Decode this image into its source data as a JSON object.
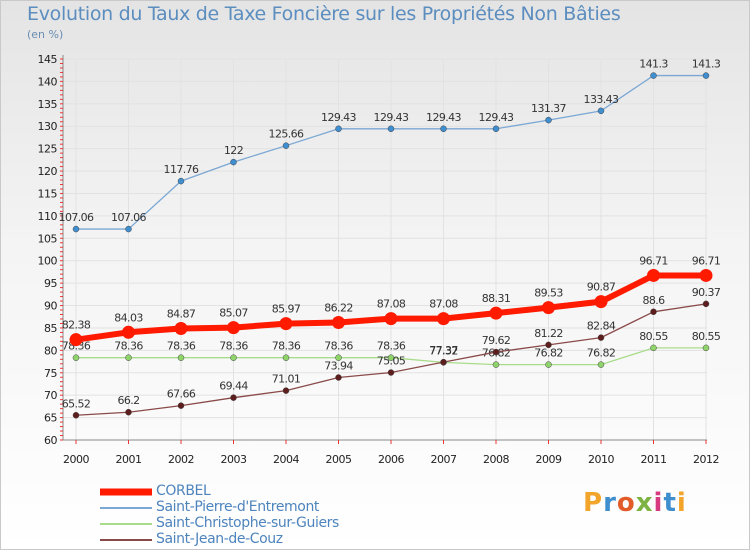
{
  "title": "Evolution du Taux de Taxe Foncière sur les Propriétés Non Bâties",
  "unit_label": "(en %)",
  "logo": {
    "text": "Proxiti",
    "colors": [
      "#f2a42b",
      "#3f8fcf",
      "#e25c2a",
      "#7cb342",
      "#d63b7f",
      "#3f8fcf",
      "#f2a42b"
    ]
  },
  "chart_data": {
    "type": "line",
    "title": "Evolution du Taux de Taxe Foncière sur les Propriétés Non Bâties",
    "ylabel": "(en %)",
    "xlabel": "",
    "ylim": [
      60,
      145
    ],
    "yticks": [
      "60",
      "65",
      "70",
      "75",
      "80",
      "85",
      "90",
      "95",
      "100",
      "105",
      "110",
      "115",
      "120",
      "125",
      "130",
      "135",
      "140",
      "145"
    ],
    "categories": [
      "2000",
      "2001",
      "2002",
      "2003",
      "2004",
      "2005",
      "2006",
      "2007",
      "2008",
      "2009",
      "2010",
      "2011",
      "2012"
    ],
    "series": [
      {
        "name": "Saint-Pierre-d'Entremont",
        "color": "#7ba7d4",
        "marker": "#3f8ecf",
        "values": [
          107.06,
          107.06,
          117.76,
          122,
          125.66,
          129.43,
          129.43,
          129.43,
          129.43,
          131.37,
          133.43,
          141.3,
          141.3
        ],
        "labels": [
          "107.06",
          "107.06",
          "117.76",
          "122",
          "125.66",
          "129.43",
          "129.43",
          "129.43",
          "129.43",
          "131.37",
          "133.43",
          "141.3",
          "141.3"
        ]
      },
      {
        "name": "Saint-Christophe-sur-Guiers",
        "color": "#a9dc8a",
        "marker": "#8fd46a",
        "values": [
          78.36,
          78.36,
          78.36,
          78.36,
          78.36,
          78.36,
          78.36,
          77.32,
          76.82,
          76.82,
          76.82,
          80.55,
          80.55
        ],
        "labels": [
          "78.36",
          "78.36",
          "78.36",
          "78.36",
          "78.36",
          "78.36",
          "78.36",
          "77.32",
          "76.82",
          "76.82",
          "76.82",
          "80.55",
          "80.55"
        ]
      },
      {
        "name": "Saint-Jean-de-Couz",
        "color": "#8a4a4a",
        "marker": "#5e1d1d",
        "values": [
          65.52,
          66.2,
          67.66,
          69.44,
          71.01,
          73.94,
          75.05,
          77.37,
          79.62,
          81.22,
          82.84,
          88.6,
          90.37
        ],
        "labels": [
          "65.52",
          "66.2",
          "67.66",
          "69.44",
          "71.01",
          "73.94",
          "75.05",
          "77.37",
          "79.62",
          "81.22",
          "82.84",
          "88.6",
          "90.37"
        ]
      },
      {
        "name": "CORBEL",
        "color": "#ff1a00",
        "marker": "#ff1a00",
        "values": [
          82.38,
          84.03,
          84.87,
          85.07,
          85.97,
          86.22,
          87.08,
          87.08,
          88.31,
          89.53,
          90.87,
          96.71,
          96.71
        ],
        "labels": [
          "82.38",
          "84.03",
          "84.87",
          "85.07",
          "85.97",
          "86.22",
          "87.08",
          "87.08",
          "88.31",
          "89.53",
          "90.87",
          "96.71",
          "96.71"
        ]
      }
    ]
  },
  "legend": {
    "items": [
      {
        "name": "CORBEL",
        "color": "#ff1a00",
        "style": "thick"
      },
      {
        "name": "Saint-Pierre-d'Entremont",
        "color": "#7ba7d4",
        "style": "thin"
      },
      {
        "name": "Saint-Christophe-sur-Guiers",
        "color": "#a9dc8a",
        "style": "thin"
      },
      {
        "name": "Saint-Jean-de-Couz",
        "color": "#8a4a4a",
        "style": "thin"
      }
    ]
  }
}
